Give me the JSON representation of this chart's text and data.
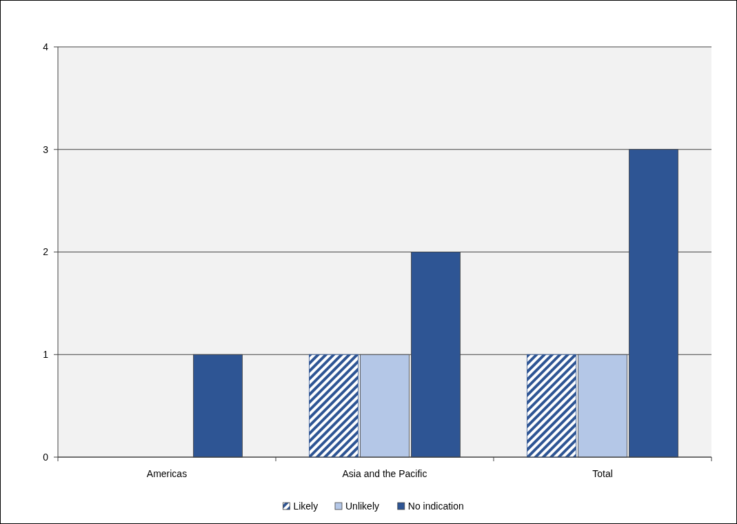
{
  "chart_data": {
    "type": "bar",
    "categories": [
      "Americas",
      "Asia and the Pacific",
      "Total"
    ],
    "series": [
      {
        "name": "Likely",
        "color": "#2e5594",
        "values": [
          0,
          1,
          1
        ]
      },
      {
        "name": "Unlikely",
        "color": "#b4c7e7",
        "values": [
          0,
          1,
          1
        ]
      },
      {
        "name": "No indication",
        "color": "#2e5594",
        "values": [
          1,
          2,
          3
        ]
      }
    ],
    "ylim": [
      0,
      4
    ],
    "yticks": [
      0,
      1,
      2,
      3,
      4
    ],
    "grid": "y",
    "legend": "bottom"
  }
}
